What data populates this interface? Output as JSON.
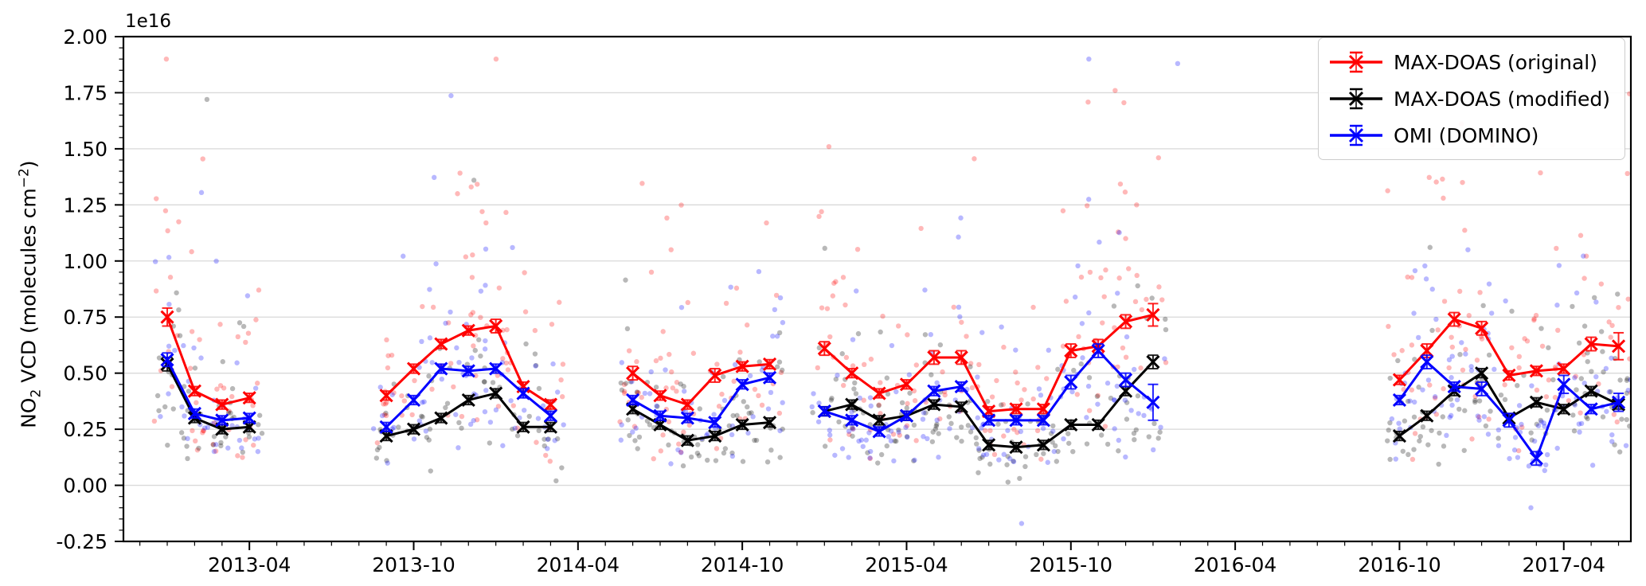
{
  "figure": {
    "background": "#ffffff",
    "offset_text": "1e16"
  },
  "chart_data": {
    "type": "line",
    "title": "",
    "xlabel": "",
    "ylabel": "NO2 VCD (molecules cm−2)",
    "ylabel_parts": {
      "pre": "NO",
      "sub": "2",
      "mid": " VCD (molecules cm",
      "sup": "−2",
      "post": ")"
    },
    "y_offset_text": "1e16",
    "unit_scale": "1e16 molecules cm-2",
    "ylim": [
      -0.25,
      2.0
    ],
    "xlim_months_since_2013_01": [
      -1.6,
      53.45
    ],
    "grid": "horizontal-major-only",
    "grid_color": "#d9d9d9",
    "legend_position": "upper right",
    "x_tick_labels": [
      "2013-04",
      "2013-10",
      "2014-04",
      "2014-10",
      "2015-04",
      "2015-10",
      "2016-04",
      "2016-10",
      "2017-04"
    ],
    "y_tick_labels": [
      "-0.25",
      "0.00",
      "0.25",
      "0.50",
      "0.75",
      "1.00",
      "1.25",
      "1.50",
      "1.75",
      "2.00"
    ],
    "y_major_step": 0.25,
    "y_minor_step": 0.05,
    "x_minor_step_months": 1,
    "months": [
      "2013-01",
      "2013-02",
      "2013-03",
      "2013-04",
      "2013-09",
      "2013-10",
      "2013-11",
      "2013-12",
      "2014-01",
      "2014-02",
      "2014-03",
      "2014-06",
      "2014-07",
      "2014-08",
      "2014-09",
      "2014-10",
      "2014-11",
      "2015-01",
      "2015-02",
      "2015-03",
      "2015-04",
      "2015-05",
      "2015-06",
      "2015-07",
      "2015-08",
      "2015-09",
      "2015-10",
      "2015-11",
      "2015-12",
      "2016-01",
      "2016-10",
      "2016-11",
      "2016-12",
      "2017-01",
      "2017-02",
      "2017-03",
      "2017-04",
      "2017-05",
      "2017-06"
    ],
    "series": [
      {
        "name": "MAX-DOAS (original)",
        "color": "#ff0000",
        "marker": "x",
        "values": [
          0.75,
          0.42,
          0.36,
          0.39,
          0.4,
          0.52,
          0.63,
          0.69,
          0.71,
          0.44,
          0.36,
          0.5,
          0.4,
          0.36,
          0.49,
          0.53,
          0.54,
          0.61,
          0.5,
          0.41,
          0.45,
          0.57,
          0.57,
          0.33,
          0.34,
          0.34,
          0.6,
          0.62,
          0.73,
          0.76,
          0.47,
          0.6,
          0.74,
          0.7,
          0.49,
          0.51,
          0.52,
          0.63,
          0.62
        ],
        "errors": [
          0.04,
          0.02,
          0.02,
          0.02,
          0.02,
          0.02,
          0.02,
          0.02,
          0.03,
          0.02,
          0.02,
          0.03,
          0.02,
          0.02,
          0.03,
          0.02,
          0.02,
          0.03,
          0.02,
          0.02,
          0.02,
          0.03,
          0.03,
          0.02,
          0.02,
          0.02,
          0.03,
          0.03,
          0.03,
          0.05,
          0.02,
          0.03,
          0.03,
          0.03,
          0.02,
          0.02,
          0.02,
          0.03,
          0.06
        ]
      },
      {
        "name": "MAX-DOAS (modified)",
        "color": "#000000",
        "marker": "x",
        "values": [
          0.54,
          0.3,
          0.25,
          0.26,
          0.22,
          0.25,
          0.3,
          0.38,
          0.41,
          0.26,
          0.26,
          0.34,
          0.27,
          0.2,
          0.22,
          0.27,
          0.28,
          0.33,
          0.36,
          0.29,
          0.31,
          0.36,
          0.35,
          0.18,
          0.17,
          0.18,
          0.27,
          0.27,
          0.42,
          0.55,
          0.22,
          0.31,
          0.42,
          0.5,
          0.3,
          0.37,
          0.34,
          0.42,
          0.36
        ],
        "errors": [
          0.03,
          0.02,
          0.02,
          0.02,
          0.02,
          0.02,
          0.02,
          0.02,
          0.02,
          0.02,
          0.02,
          0.02,
          0.02,
          0.02,
          0.02,
          0.02,
          0.02,
          0.02,
          0.02,
          0.02,
          0.02,
          0.02,
          0.02,
          0.02,
          0.02,
          0.02,
          0.02,
          0.02,
          0.02,
          0.03,
          0.02,
          0.02,
          0.02,
          0.02,
          0.02,
          0.02,
          0.02,
          0.02,
          0.02
        ]
      },
      {
        "name": "OMI (DOMINO)",
        "color": "#0000ff",
        "marker": "x",
        "values": [
          0.56,
          0.32,
          0.29,
          0.3,
          0.26,
          0.38,
          0.52,
          0.51,
          0.52,
          0.41,
          0.31,
          0.38,
          0.31,
          0.3,
          0.28,
          0.45,
          0.48,
          0.33,
          0.29,
          0.24,
          0.31,
          0.42,
          0.44,
          0.29,
          0.29,
          0.29,
          0.46,
          0.6,
          0.47,
          0.37,
          0.38,
          0.55,
          0.44,
          0.43,
          0.29,
          0.12,
          0.45,
          0.34,
          0.37
        ],
        "errors": [
          0.03,
          0.02,
          0.02,
          0.02,
          0.02,
          0.02,
          0.02,
          0.02,
          0.02,
          0.02,
          0.02,
          0.02,
          0.02,
          0.02,
          0.02,
          0.02,
          0.02,
          0.02,
          0.02,
          0.02,
          0.02,
          0.02,
          0.02,
          0.02,
          0.02,
          0.02,
          0.03,
          0.03,
          0.03,
          0.08,
          0.02,
          0.03,
          0.02,
          0.03,
          0.03,
          0.03,
          0.04,
          0.02,
          0.04
        ]
      }
    ],
    "scatter": {
      "note": "faint daily values behind monthly means",
      "alpha": 0.28,
      "radius": 3.2,
      "per_month_min": 6,
      "per_month_range": 9,
      "x_jitter_months": 0.96,
      "lognormal_sigma": 0.5,
      "seed": 20130401,
      "outliers": [
        {
          "series": 1,
          "month": "2013-02",
          "frac": 0.45,
          "value": 1.72
        },
        {
          "series": 0,
          "month": "2013-02",
          "frac": 0.3,
          "value": 1.455
        },
        {
          "series": 2,
          "month": "2013-02",
          "frac": 0.25,
          "value": 1.305
        },
        {
          "series": 0,
          "month": "2013-11",
          "frac": 0.6,
          "value": 1.3
        },
        {
          "series": 0,
          "month": "2013-12",
          "frac": 0.1,
          "value": 1.33
        },
        {
          "series": 1,
          "month": "2013-12",
          "frac": 0.2,
          "value": 1.36
        },
        {
          "series": 0,
          "month": "2013-12",
          "frac": 0.5,
          "value": 1.22
        },
        {
          "series": 0,
          "month": "2014-07",
          "frac": 0.4,
          "value": 1.05
        },
        {
          "series": 2,
          "month": "2016-01",
          "frac": 0.9,
          "value": 1.88
        },
        {
          "series": 0,
          "month": "2016-01",
          "frac": 0.2,
          "value": 1.46
        },
        {
          "series": 0,
          "month": "2015-12",
          "frac": 0.4,
          "value": 1.25
        },
        {
          "series": 0,
          "month": "2015-12",
          "frac": 0.0,
          "value": 1.1
        },
        {
          "series": 0,
          "month": "2016-12",
          "frac": 0.3,
          "value": 1.35
        },
        {
          "series": 0,
          "month": "2016-11",
          "frac": 0.6,
          "value": 1.28
        },
        {
          "series": 2,
          "month": "2016-12",
          "frac": 0.5,
          "value": 1.05
        },
        {
          "series": 2,
          "month": "2015-08",
          "frac": 0.2,
          "value": -0.17
        },
        {
          "series": 2,
          "month": "2017-02",
          "frac": 0.8,
          "value": -0.1
        },
        {
          "series": 1,
          "month": "2014-03",
          "frac": 0.2,
          "value": 0.02
        }
      ]
    }
  }
}
